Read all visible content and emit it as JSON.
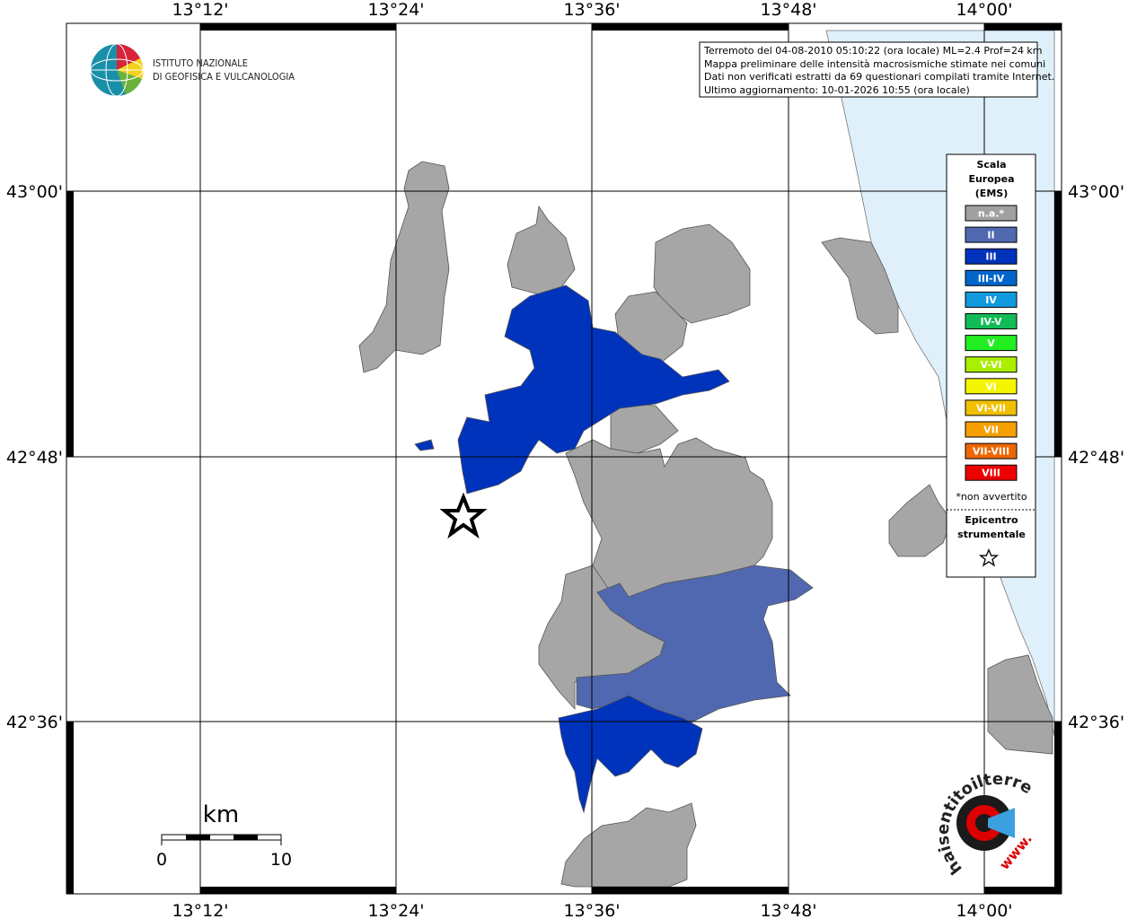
{
  "logo": {
    "line1": "ISTITUTO NAZIONALE",
    "line2": "DI GEOFISICA E VULCANOLOGIA"
  },
  "info": {
    "lines": [
      "Terremoto del 04-08-2010 05:10:22 (ora locale) ML=2.4 Prof=24 km",
      "Mappa preliminare delle intensità macrosismiche stimate nei comuni",
      "Dati non verificati estratti da 69 questionari compilati tramite Internet.",
      "Ultimo aggiornamento: 10-01-2026 10:55 (ora locale)"
    ]
  },
  "axes": {
    "longitude": [
      "13°12'",
      "13°24'",
      "13°36'",
      "13°48'",
      "14°00'"
    ],
    "latitude": [
      "43°00'",
      "42°48'",
      "42°36'"
    ]
  },
  "legend": {
    "title": [
      "Scala",
      "Europea",
      "(EMS)"
    ],
    "items": [
      {
        "label": "n.a.*",
        "color": "#a0a0a0"
      },
      {
        "label": "II",
        "color": "#5068b0"
      },
      {
        "label": "III",
        "color": "#0033bb"
      },
      {
        "label": "III-IV",
        "color": "#0066cc"
      },
      {
        "label": "IV",
        "color": "#1199dd"
      },
      {
        "label": "IV-V",
        "color": "#11bb55"
      },
      {
        "label": "V",
        "color": "#22ee22"
      },
      {
        "label": "V-VI",
        "color": "#aaee00"
      },
      {
        "label": "VI",
        "color": "#f5f500"
      },
      {
        "label": "VI-VII",
        "color": "#f0c000"
      },
      {
        "label": "VII",
        "color": "#f5a000"
      },
      {
        "label": "VII-VIII",
        "color": "#ee6600"
      },
      {
        "label": "VIII",
        "color": "#ee0000"
      }
    ],
    "note": "*non avvertito",
    "epicenter": [
      "Epicentro",
      "strumentale"
    ]
  },
  "scale": {
    "unit": "km",
    "labels": [
      0,
      10
    ]
  },
  "site_logo": {
    "prefix": "www.",
    "text": "haisentitoilterremoto.it"
  }
}
